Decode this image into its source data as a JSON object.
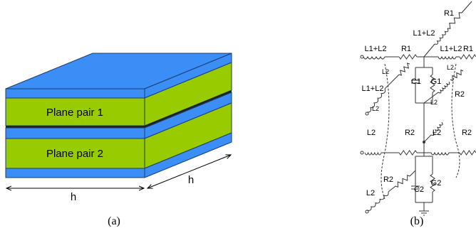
{
  "panel_a": {
    "layers": [
      "Plane pair 1",
      "Plane pair 2"
    ],
    "front_dimension": "h",
    "side_dimension": "h",
    "caption": "(a)"
  },
  "panel_b": {
    "labels": [
      "R1",
      "L1+L2",
      "L1+L2",
      "R1",
      "L1+L2",
      "R1",
      "L2",
      "C1",
      "G1",
      "L1+L2",
      "L2",
      "R2",
      "L2",
      "L2",
      "R2",
      "L2",
      "R2",
      "R2",
      "C2",
      "G2",
      "L2",
      "L2"
    ],
    "caption": "(b)"
  }
}
